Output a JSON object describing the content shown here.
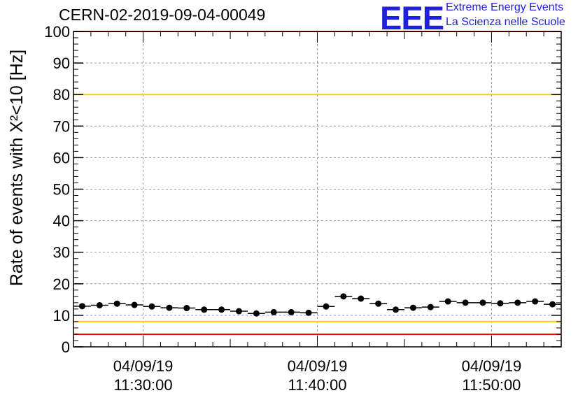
{
  "header": {
    "run_title": "CERN-02-2019-09-04-00049",
    "logo_text": "EEE",
    "logo_line1": "Extreme Energy Events",
    "logo_line2": "La Scienza nelle Scuole",
    "logo_color": "#1f1fdc"
  },
  "chart_data": {
    "type": "scatter",
    "title": "CERN-02-2019-09-04-00049",
    "xlabel": "",
    "ylabel": "Rate of events with X²<10 [Hz]",
    "ylim": [
      0,
      100
    ],
    "xlim": [
      "04/09/19 11:26:00",
      "04/09/19 11:54:00"
    ],
    "grid": true,
    "y_ticks": [
      "0",
      "10",
      "20",
      "30",
      "40",
      "50",
      "60",
      "70",
      "80",
      "90",
      "100"
    ],
    "x_ticks": [
      {
        "date": "04/09/19",
        "time": "11:30:00"
      },
      {
        "date": "04/09/19",
        "time": "11:40:00"
      },
      {
        "date": "04/09/19",
        "time": "11:50:00"
      }
    ],
    "bin_width_minutes": 1,
    "x_start": "11:26:00",
    "values": [
      12.9,
      13.2,
      13.7,
      13.3,
      12.8,
      12.4,
      12.3,
      11.8,
      11.8,
      11.3,
      10.6,
      11.0,
      11.0,
      10.8,
      12.8,
      16.0,
      15.3,
      13.7,
      11.8,
      12.4,
      12.6,
      14.4,
      14.0,
      14.0,
      13.8,
      14.0,
      14.4,
      13.5
    ],
    "reference_lines": [
      {
        "value": 100,
        "color": "#ff0000"
      },
      {
        "value": 80,
        "color": "#ffcc00"
      },
      {
        "value": 8,
        "color": "#ffcc00"
      },
      {
        "value": 4,
        "color": "#ff0000"
      }
    ]
  }
}
